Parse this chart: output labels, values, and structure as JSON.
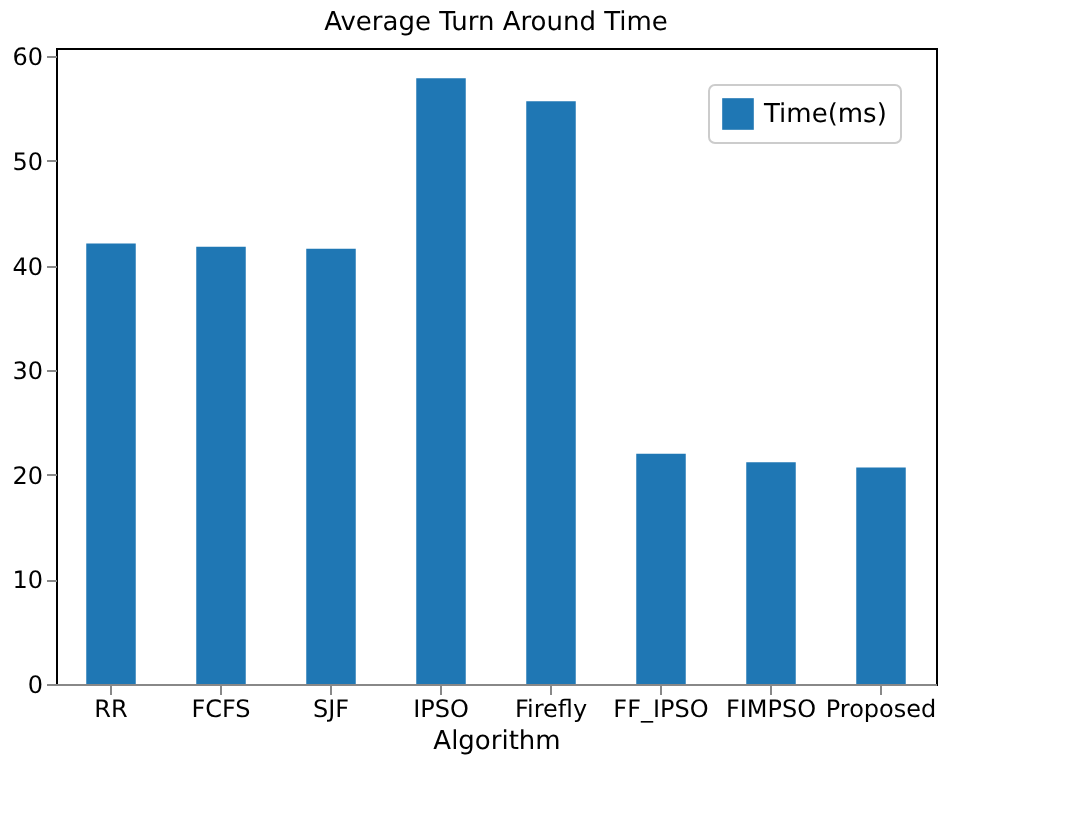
{
  "chart_data": {
    "type": "bar",
    "title": "Average Turn Around Time",
    "xlabel": "Algorithm",
    "categories": [
      "RR",
      "FCFS",
      "SJF",
      "IPSO",
      "Firefly",
      "FF_IPSO",
      "FIMPSO",
      "Proposed"
    ],
    "series": [
      {
        "name": "Time(ms)",
        "color": "#1f77b4",
        "values": [
          42.1,
          41.8,
          41.6,
          57.9,
          55.7,
          22.0,
          21.2,
          20.7
        ]
      }
    ],
    "ylim": [
      0,
      60.8
    ],
    "yticks": [
      0,
      10,
      20,
      30,
      40,
      50,
      60
    ],
    "grid": false,
    "legend": "top right"
  }
}
